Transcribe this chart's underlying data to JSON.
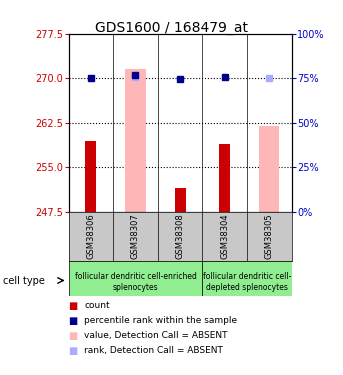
{
  "title": "GDS1600 / 168479_at",
  "samples": [
    "GSM38306",
    "GSM38307",
    "GSM38308",
    "GSM38304",
    "GSM38305"
  ],
  "ylim_left": [
    247.5,
    277.5
  ],
  "ylim_right": [
    0,
    100
  ],
  "yticks_left": [
    247.5,
    255,
    262.5,
    270,
    277.5
  ],
  "yticks_right": [
    0,
    25,
    50,
    75,
    100
  ],
  "red_bars": [
    259.5,
    0,
    251.5,
    259.0,
    0
  ],
  "pink_bars": [
    0,
    271.5,
    0,
    0,
    262.0
  ],
  "blue_squares": [
    270.0,
    270.5,
    269.8,
    270.3,
    0
  ],
  "light_blue_squares": [
    0,
    270.2,
    0,
    0,
    270.1
  ],
  "bar_bottom": 247.5,
  "red_color": "#cc0000",
  "pink_color": "#ffb6b6",
  "blue_color": "#00008b",
  "light_blue_color": "#aaaaff",
  "left_axis_color": "#cc0000",
  "right_axis_color": "#0000cc",
  "tick_fontsize": 7,
  "title_fontsize": 10,
  "gray_color": "#c8c8c8",
  "green_color": "#90ee90",
  "legend_items": [
    {
      "label": "count",
      "color": "#cc0000"
    },
    {
      "label": "percentile rank within the sample",
      "color": "#00008b"
    },
    {
      "label": "value, Detection Call = ABSENT",
      "color": "#ffb6b6"
    },
    {
      "label": "rank, Detection Call = ABSENT",
      "color": "#aaaaff"
    }
  ]
}
